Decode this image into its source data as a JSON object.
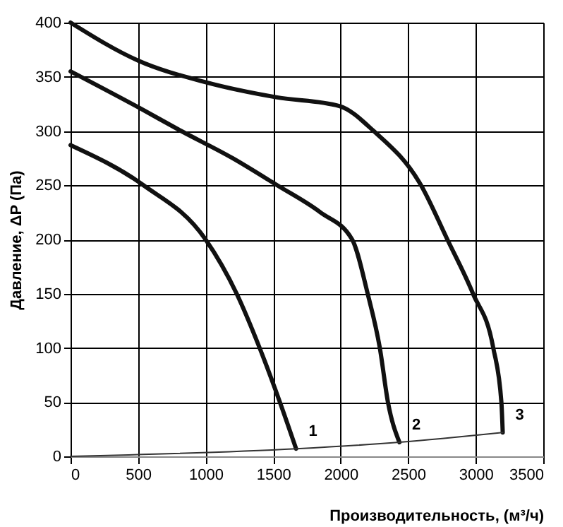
{
  "chart_data": {
    "type": "line",
    "xlabel": "Производительность, (м³/ч)",
    "ylabel": "Давление, ΔP (Па)",
    "series": [
      {
        "color": "#111111",
        "x": [
          0,
          540,
          1000,
          1230,
          1400,
          1550,
          1670
        ],
        "values": [
          287,
          250,
          200,
          150,
          100,
          50,
          7
        ]
      },
      {
        "color": "#111111",
        "x": [
          0,
          500,
          820,
          1200,
          1530,
          1850,
          2085,
          2200,
          2290,
          2350,
          2435
        ],
        "values": [
          355,
          322,
          300,
          275,
          250,
          225,
          200,
          150,
          100,
          50,
          13
        ]
      },
      {
        "color": "#111111",
        "x": [
          0,
          500,
          1000,
          1530,
          1990,
          2245,
          2595,
          2790,
          2980,
          3130,
          3190,
          3200
        ],
        "values": [
          400,
          365,
          345,
          331,
          323,
          300,
          250,
          200,
          150,
          100,
          50,
          22
        ]
      },
      {
        "color": "#333333",
        "x": [
          0,
          1670,
          2435,
          3200
        ],
        "values": [
          0,
          7,
          13,
          22
        ]
      }
    ],
    "xlim": [
      0,
      3500
    ],
    "ylim": [
      0,
      400
    ],
    "xticks": [
      0,
      500,
      1000,
      1500,
      2000,
      2500,
      3000,
      3500
    ],
    "yticks": [
      0,
      50,
      100,
      150,
      200,
      250,
      300,
      350,
      400
    ],
    "grid": true,
    "annotations": [
      "1",
      "2",
      "3"
    ]
  }
}
